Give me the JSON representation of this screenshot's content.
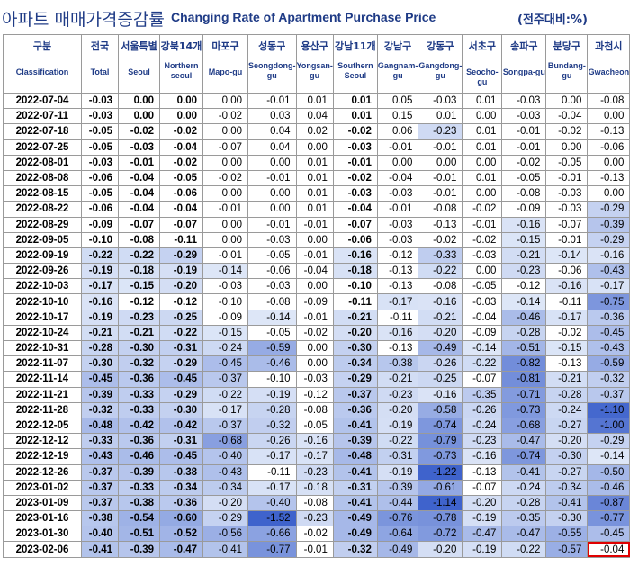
{
  "title": {
    "ko": "아파트 매매가격증감률",
    "en": "Changing Rate of Apartment Purchase Price",
    "unit": "(전주대비:%)"
  },
  "columns": [
    {
      "ko": "구분",
      "en": "Classification",
      "en_bold": false
    },
    {
      "ko": "전국",
      "en": "Total",
      "en_bold": true
    },
    {
      "ko": "서울특별",
      "en": "Seoul",
      "en_bold": true
    },
    {
      "ko": "강북14개",
      "en": "Northern seoul",
      "en_bold": true
    },
    {
      "ko": "마포구",
      "en": "Mapo-gu",
      "en_bold": false
    },
    {
      "ko": "성동구",
      "en": "Seongdong-gu",
      "en_bold": false
    },
    {
      "ko": "용산구",
      "en": "Yongsan-gu",
      "en_bold": false
    },
    {
      "ko": "강남11개",
      "en": "Southern Seoul",
      "en_bold": true
    },
    {
      "ko": "강남구",
      "en": "Gangnam-gu",
      "en_bold": false
    },
    {
      "ko": "강동구",
      "en": "Gangdong-gu",
      "en_bold": false
    },
    {
      "ko": "서초구",
      "en": "Seocho-gu",
      "en_bold": false
    },
    {
      "ko": "송파구",
      "en": "Songpa-gu",
      "en_bold": false
    },
    {
      "ko": "분당구",
      "en": "Bundang-gu",
      "en_bold": false
    },
    {
      "ko": "과천시",
      "en": "Gwacheon",
      "en_bold": false
    }
  ],
  "rows": [
    [
      "2022-07-04",
      "-0.03",
      "0.00",
      "0.00",
      "0.00",
      "-0.01",
      "0.01",
      "0.01",
      "0.05",
      "-0.03",
      "0.01",
      "-0.03",
      "0.00",
      "-0.08"
    ],
    [
      "2022-07-11",
      "-0.03",
      "0.00",
      "0.00",
      "-0.02",
      "0.03",
      "0.04",
      "0.01",
      "0.15",
      "0.01",
      "0.00",
      "-0.03",
      "-0.04",
      "0.00"
    ],
    [
      "2022-07-18",
      "-0.05",
      "-0.02",
      "-0.02",
      "0.00",
      "0.04",
      "0.02",
      "-0.02",
      "0.06",
      "-0.23",
      "0.01",
      "-0.01",
      "-0.02",
      "-0.13"
    ],
    [
      "2022-07-25",
      "-0.05",
      "-0.03",
      "-0.04",
      "-0.07",
      "0.04",
      "0.00",
      "-0.03",
      "-0.01",
      "-0.01",
      "0.01",
      "-0.01",
      "0.00",
      "-0.06"
    ],
    [
      "2022-08-01",
      "-0.03",
      "-0.01",
      "-0.02",
      "0.00",
      "0.00",
      "0.01",
      "-0.01",
      "0.00",
      "0.00",
      "0.00",
      "-0.02",
      "-0.05",
      "0.00"
    ],
    [
      "2022-08-08",
      "-0.06",
      "-0.04",
      "-0.05",
      "-0.02",
      "-0.01",
      "0.01",
      "-0.02",
      "-0.04",
      "-0.01",
      "0.01",
      "-0.05",
      "-0.01",
      "-0.13"
    ],
    [
      "2022-08-15",
      "-0.05",
      "-0.04",
      "-0.06",
      "0.00",
      "0.00",
      "0.01",
      "-0.03",
      "-0.03",
      "-0.01",
      "0.00",
      "-0.08",
      "-0.03",
      "0.00"
    ],
    [
      "2022-08-22",
      "-0.06",
      "-0.04",
      "-0.04",
      "-0.01",
      "0.00",
      "0.01",
      "-0.04",
      "-0.01",
      "-0.08",
      "-0.02",
      "-0.09",
      "-0.03",
      "-0.29"
    ],
    [
      "2022-08-29",
      "-0.09",
      "-0.07",
      "-0.07",
      "0.00",
      "-0.01",
      "-0.01",
      "-0.07",
      "-0.03",
      "-0.13",
      "-0.01",
      "-0.16",
      "-0.07",
      "-0.39"
    ],
    [
      "2022-09-05",
      "-0.10",
      "-0.08",
      "-0.11",
      "0.00",
      "-0.03",
      "0.00",
      "-0.06",
      "-0.03",
      "-0.02",
      "-0.02",
      "-0.15",
      "-0.01",
      "-0.29"
    ],
    [
      "2022-09-19",
      "-0.22",
      "-0.22",
      "-0.29",
      "-0.01",
      "-0.05",
      "-0.01",
      "-0.16",
      "-0.12",
      "-0.33",
      "-0.03",
      "-0.21",
      "-0.14",
      "-0.16"
    ],
    [
      "2022-09-26",
      "-0.19",
      "-0.18",
      "-0.19",
      "-0.14",
      "-0.06",
      "-0.04",
      "-0.18",
      "-0.13",
      "-0.22",
      "0.00",
      "-0.23",
      "-0.06",
      "-0.43"
    ],
    [
      "2022-10-03",
      "-0.17",
      "-0.15",
      "-0.20",
      "-0.03",
      "-0.03",
      "0.00",
      "-0.10",
      "-0.13",
      "-0.08",
      "-0.05",
      "-0.12",
      "-0.16",
      "-0.17"
    ],
    [
      "2022-10-10",
      "-0.16",
      "-0.12",
      "-0.12",
      "-0.10",
      "-0.08",
      "-0.09",
      "-0.11",
      "-0.17",
      "-0.16",
      "-0.03",
      "-0.14",
      "-0.11",
      "-0.75"
    ],
    [
      "2022-10-17",
      "-0.19",
      "-0.23",
      "-0.25",
      "-0.09",
      "-0.14",
      "-0.01",
      "-0.21",
      "-0.11",
      "-0.21",
      "-0.04",
      "-0.46",
      "-0.17",
      "-0.36"
    ],
    [
      "2022-10-24",
      "-0.21",
      "-0.21",
      "-0.22",
      "-0.15",
      "-0.05",
      "-0.02",
      "-0.20",
      "-0.16",
      "-0.20",
      "-0.09",
      "-0.28",
      "-0.02",
      "-0.45"
    ],
    [
      "2022-10-31",
      "-0.28",
      "-0.30",
      "-0.31",
      "-0.24",
      "-0.59",
      "0.00",
      "-0.30",
      "-0.13",
      "-0.49",
      "-0.14",
      "-0.51",
      "-0.15",
      "-0.43"
    ],
    [
      "2022-11-07",
      "-0.30",
      "-0.32",
      "-0.29",
      "-0.45",
      "-0.46",
      "0.00",
      "-0.34",
      "-0.38",
      "-0.26",
      "-0.22",
      "-0.82",
      "-0.13",
      "-0.59"
    ],
    [
      "2022-11-14",
      "-0.45",
      "-0.36",
      "-0.45",
      "-0.37",
      "-0.10",
      "-0.03",
      "-0.29",
      "-0.21",
      "-0.25",
      "-0.07",
      "-0.81",
      "-0.21",
      "-0.32"
    ],
    [
      "2022-11-21",
      "-0.39",
      "-0.33",
      "-0.29",
      "-0.22",
      "-0.19",
      "-0.12",
      "-0.37",
      "-0.23",
      "-0.16",
      "-0.35",
      "-0.71",
      "-0.28",
      "-0.37"
    ],
    [
      "2022-11-28",
      "-0.32",
      "-0.33",
      "-0.30",
      "-0.17",
      "-0.28",
      "-0.08",
      "-0.36",
      "-0.20",
      "-0.58",
      "-0.26",
      "-0.73",
      "-0.24",
      "-1.10"
    ],
    [
      "2022-12-05",
      "-0.48",
      "-0.42",
      "-0.42",
      "-0.37",
      "-0.32",
      "-0.05",
      "-0.41",
      "-0.19",
      "-0.74",
      "-0.24",
      "-0.68",
      "-0.27",
      "-1.00"
    ],
    [
      "2022-12-12",
      "-0.33",
      "-0.36",
      "-0.31",
      "-0.68",
      "-0.26",
      "-0.16",
      "-0.39",
      "-0.22",
      "-0.79",
      "-0.23",
      "-0.47",
      "-0.20",
      "-0.29"
    ],
    [
      "2022-12-19",
      "-0.43",
      "-0.46",
      "-0.45",
      "-0.40",
      "-0.17",
      "-0.17",
      "-0.48",
      "-0.31",
      "-0.73",
      "-0.16",
      "-0.74",
      "-0.30",
      "-0.14"
    ],
    [
      "2022-12-26",
      "-0.37",
      "-0.39",
      "-0.38",
      "-0.43",
      "-0.11",
      "-0.23",
      "-0.41",
      "-0.19",
      "-1.22",
      "-0.13",
      "-0.41",
      "-0.27",
      "-0.50"
    ],
    [
      "2023-01-02",
      "-0.37",
      "-0.33",
      "-0.34",
      "-0.34",
      "-0.17",
      "-0.18",
      "-0.31",
      "-0.39",
      "-0.61",
      "-0.07",
      "-0.24",
      "-0.34",
      "-0.46"
    ],
    [
      "2023-01-09",
      "-0.37",
      "-0.38",
      "-0.36",
      "-0.20",
      "-0.40",
      "-0.08",
      "-0.41",
      "-0.44",
      "-1.14",
      "-0.20",
      "-0.28",
      "-0.41",
      "-0.87"
    ],
    [
      "2023-01-16",
      "-0.38",
      "-0.54",
      "-0.60",
      "-0.29",
      "-1.52",
      "-0.23",
      "-0.49",
      "-0.76",
      "-0.78",
      "-0.19",
      "-0.35",
      "-0.30",
      "-0.77"
    ],
    [
      "2023-01-30",
      "-0.40",
      "-0.51",
      "-0.52",
      "-0.56",
      "-0.66",
      "-0.02",
      "-0.49",
      "-0.64",
      "-0.72",
      "-0.47",
      "-0.47",
      "-0.55",
      "-0.45"
    ],
    [
      "2023-02-06",
      "-0.41",
      "-0.39",
      "-0.47",
      "-0.41",
      "-0.77",
      "-0.01",
      "-0.32",
      "-0.49",
      "-0.20",
      "-0.19",
      "-0.22",
      "-0.57",
      "-0.04"
    ]
  ],
  "bold_columns": [
    1,
    2,
    3,
    7
  ],
  "highlighted_cell": {
    "row": 29,
    "col": 13
  },
  "colors": {
    "title": "#1f3b86",
    "highlight_border": "#e00000",
    "shade_light": "#dde6f7",
    "shade_dark": "#3f63cc"
  }
}
